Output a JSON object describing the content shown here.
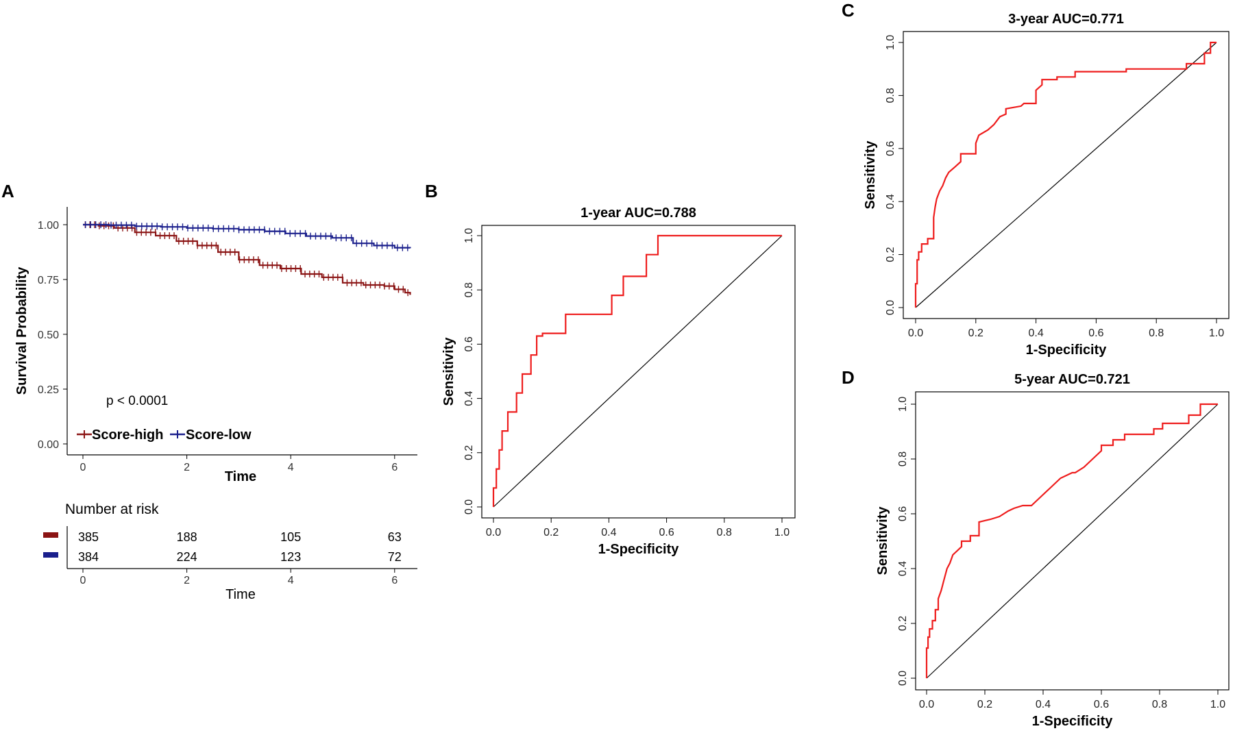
{
  "panels": {
    "A": "A",
    "B": "B",
    "C": "C",
    "D": "D"
  },
  "colors": {
    "score_high": "#8b1414",
    "score_low": "#1a1f8c",
    "roc_curve": "#ee1c1c",
    "diagonal": "#000000"
  },
  "km": {
    "ylabel": "Survival Probability",
    "xlabel": "Time",
    "p_value": "p < 0.0001",
    "legend": [
      "Score-high",
      "Score-low"
    ],
    "risk_title": "Number at risk",
    "risk_xlabel": "Time"
  },
  "chart_data": [
    {
      "type": "line",
      "id": "A",
      "title": "",
      "xlabel": "Time",
      "ylabel": "Survival Probability",
      "xlim": [
        0,
        6.3
      ],
      "ylim": [
        0,
        1.05
      ],
      "xticks": [
        0,
        2,
        4,
        6
      ],
      "yticks": [
        0.0,
        0.25,
        0.5,
        0.75,
        1.0
      ],
      "ytick_labels": [
        "0.00",
        "0.25",
        "0.50",
        "0.75",
        "1.00"
      ],
      "annotation": "p < 0.0001",
      "series": [
        {
          "name": "Score-high",
          "x": [
            0,
            0.3,
            0.6,
            1.0,
            1.4,
            1.8,
            2.2,
            2.6,
            3.0,
            3.4,
            3.8,
            4.2,
            4.6,
            5.0,
            5.4,
            5.8,
            6.0,
            6.2,
            6.3
          ],
          "y": [
            1.0,
            0.995,
            0.985,
            0.965,
            0.95,
            0.925,
            0.905,
            0.875,
            0.84,
            0.815,
            0.8,
            0.775,
            0.76,
            0.735,
            0.725,
            0.72,
            0.705,
            0.69,
            0.68
          ]
        },
        {
          "name": "Score-low",
          "x": [
            0,
            0.5,
            1.0,
            1.5,
            2.0,
            2.5,
            3.0,
            3.5,
            3.9,
            4.3,
            4.8,
            5.2,
            5.6,
            6.0,
            6.3
          ],
          "y": [
            1.0,
            0.998,
            0.993,
            0.99,
            0.985,
            0.982,
            0.977,
            0.97,
            0.96,
            0.948,
            0.94,
            0.915,
            0.905,
            0.895,
            0.893
          ]
        }
      ]
    },
    {
      "type": "table",
      "id": "risk",
      "title": "Number at risk",
      "xlabel": "Time",
      "columns": [
        0,
        2,
        4,
        6
      ],
      "series": [
        {
          "name": "Score-high",
          "values": [
            385,
            188,
            105,
            63
          ]
        },
        {
          "name": "Score-low",
          "values": [
            384,
            224,
            123,
            72
          ]
        }
      ]
    },
    {
      "type": "line",
      "id": "B",
      "title": "1-year AUC=0.788",
      "xlabel": "1-Specificity",
      "ylabel": "Sensitivity",
      "xlim": [
        0,
        1
      ],
      "ylim": [
        0,
        1
      ],
      "ticks": [
        "0.0",
        "0.2",
        "0.4",
        "0.6",
        "0.8",
        "1.0"
      ],
      "x": [
        0,
        0,
        0.01,
        0.01,
        0.02,
        0.02,
        0.03,
        0.03,
        0.05,
        0.05,
        0.08,
        0.08,
        0.1,
        0.1,
        0.13,
        0.13,
        0.15,
        0.15,
        0.17,
        0.17,
        0.25,
        0.25,
        0.41,
        0.41,
        0.45,
        0.45,
        0.53,
        0.53,
        0.57,
        0.57,
        1.0
      ],
      "y": [
        0,
        0.07,
        0.07,
        0.14,
        0.14,
        0.21,
        0.21,
        0.28,
        0.28,
        0.35,
        0.35,
        0.42,
        0.42,
        0.49,
        0.49,
        0.56,
        0.56,
        0.63,
        0.63,
        0.64,
        0.64,
        0.71,
        0.71,
        0.78,
        0.78,
        0.85,
        0.85,
        0.93,
        0.93,
        1.0,
        1.0
      ]
    },
    {
      "type": "line",
      "id": "C",
      "title": "3-year AUC=0.771",
      "xlabel": "1-Specificity",
      "ylabel": "Sensitivity",
      "xlim": [
        0,
        1
      ],
      "ylim": [
        0,
        1
      ],
      "ticks": [
        "0.0",
        "0.2",
        "0.4",
        "0.6",
        "0.8",
        "1.0"
      ],
      "x": [
        0,
        0,
        0.005,
        0.005,
        0.01,
        0.01,
        0.02,
        0.02,
        0.04,
        0.04,
        0.06,
        0.06,
        0.065,
        0.07,
        0.08,
        0.09,
        0.1,
        0.11,
        0.13,
        0.15,
        0.15,
        0.2,
        0.2,
        0.21,
        0.24,
        0.26,
        0.28,
        0.3,
        0.3,
        0.35,
        0.36,
        0.4,
        0.4,
        0.42,
        0.42,
        0.47,
        0.47,
        0.53,
        0.53,
        0.7,
        0.7,
        0.9,
        0.9,
        0.96,
        0.96,
        0.98,
        0.98,
        1.0
      ],
      "y": [
        0,
        0.09,
        0.09,
        0.18,
        0.18,
        0.21,
        0.21,
        0.24,
        0.24,
        0.26,
        0.26,
        0.34,
        0.38,
        0.41,
        0.44,
        0.46,
        0.49,
        0.51,
        0.53,
        0.55,
        0.58,
        0.58,
        0.62,
        0.65,
        0.67,
        0.69,
        0.72,
        0.73,
        0.75,
        0.76,
        0.77,
        0.77,
        0.82,
        0.84,
        0.86,
        0.86,
        0.87,
        0.87,
        0.89,
        0.89,
        0.9,
        0.9,
        0.92,
        0.92,
        0.96,
        0.96,
        1.0,
        1.0
      ]
    },
    {
      "type": "line",
      "id": "D",
      "title": "5-year AUC=0.721",
      "xlabel": "1-Specificity",
      "ylabel": "Sensitivity",
      "xlim": [
        0,
        1
      ],
      "ylim": [
        0,
        1
      ],
      "ticks": [
        "0.0",
        "0.2",
        "0.4",
        "0.6",
        "0.8",
        "1.0"
      ],
      "x": [
        0,
        0,
        0.005,
        0.005,
        0.01,
        0.01,
        0.02,
        0.02,
        0.03,
        0.03,
        0.04,
        0.04,
        0.05,
        0.06,
        0.07,
        0.08,
        0.09,
        0.1,
        0.12,
        0.12,
        0.15,
        0.15,
        0.18,
        0.18,
        0.22,
        0.25,
        0.28,
        0.3,
        0.33,
        0.36,
        0.38,
        0.4,
        0.43,
        0.46,
        0.5,
        0.51,
        0.54,
        0.56,
        0.58,
        0.6,
        0.6,
        0.64,
        0.64,
        0.68,
        0.68,
        0.78,
        0.78,
        0.81,
        0.81,
        0.9,
        0.9,
        0.94,
        0.94,
        1.0
      ],
      "y": [
        0,
        0.11,
        0.11,
        0.15,
        0.15,
        0.18,
        0.18,
        0.21,
        0.21,
        0.25,
        0.25,
        0.29,
        0.32,
        0.36,
        0.4,
        0.42,
        0.45,
        0.46,
        0.48,
        0.5,
        0.5,
        0.52,
        0.52,
        0.57,
        0.58,
        0.59,
        0.61,
        0.62,
        0.63,
        0.63,
        0.65,
        0.67,
        0.7,
        0.73,
        0.75,
        0.75,
        0.77,
        0.79,
        0.81,
        0.83,
        0.85,
        0.85,
        0.87,
        0.87,
        0.89,
        0.89,
        0.91,
        0.91,
        0.93,
        0.93,
        0.96,
        0.96,
        1.0,
        1.0
      ]
    }
  ]
}
